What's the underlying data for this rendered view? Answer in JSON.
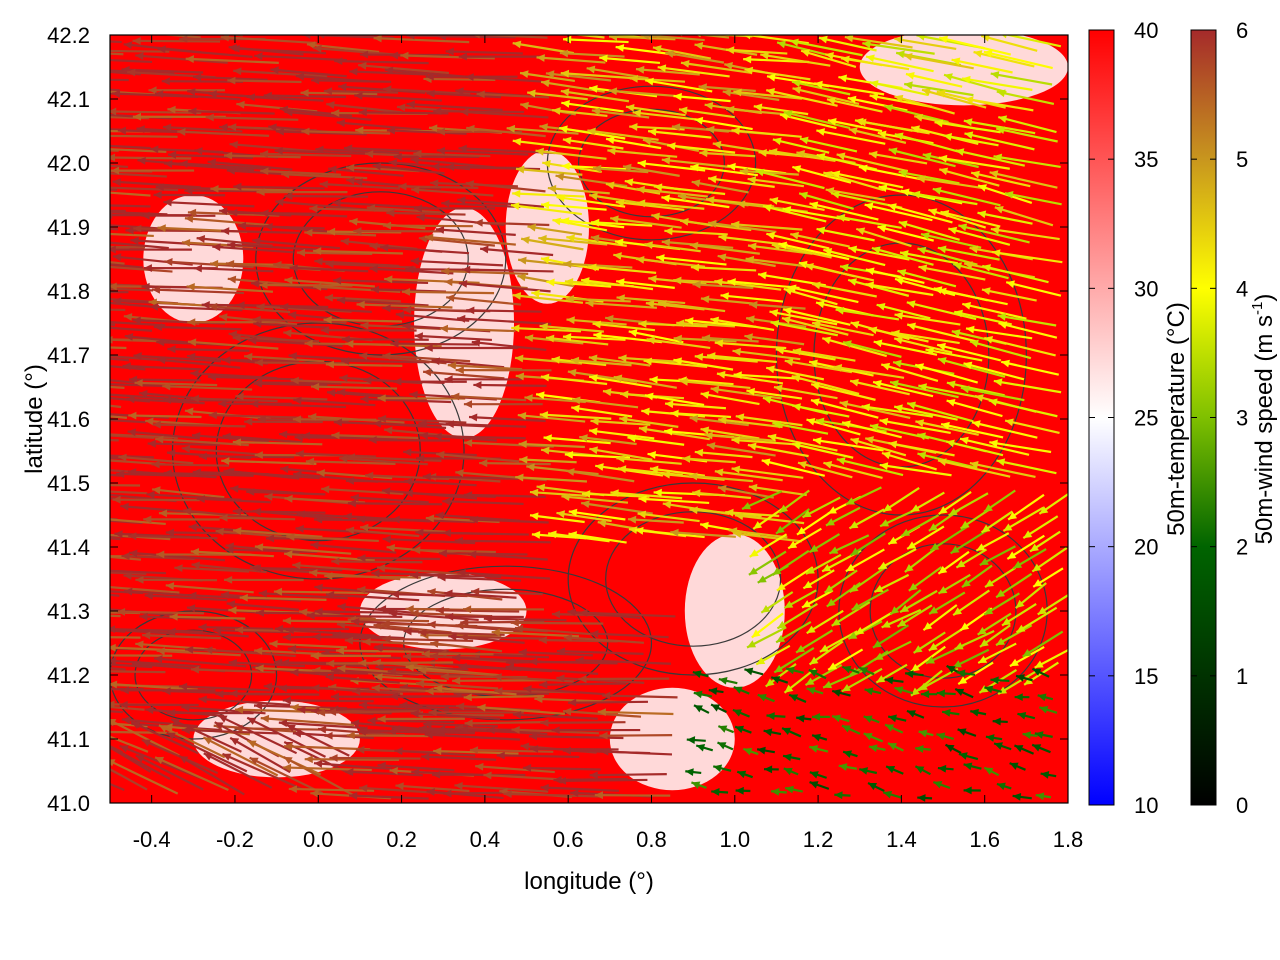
{
  "chart_data": {
    "type": "heatmap",
    "overlay": [
      "wind vectors (arrows)",
      "contour lines"
    ],
    "xlabel": "longitude (°)",
    "ylabel": "latitude (°)",
    "xlim": [
      -0.5,
      1.8
    ],
    "ylim": [
      41.0,
      42.2
    ],
    "x_ticks": [
      "-0.4",
      "-0.2",
      "0.0",
      "0.2",
      "0.4",
      "0.6",
      "0.8",
      "1.0",
      "1.2",
      "1.4",
      "1.6",
      "1.8"
    ],
    "y_ticks": [
      "41.0",
      "41.1",
      "41.2",
      "41.3",
      "41.4",
      "41.5",
      "41.6",
      "41.7",
      "41.8",
      "41.9",
      "42.0",
      "42.1",
      "42.2"
    ],
    "temperature_colorbar": {
      "label": "50m-temperature (°C)",
      "range": [
        10,
        40
      ],
      "ticks": [
        "10",
        "15",
        "20",
        "25",
        "30",
        "35",
        "40"
      ],
      "colors": [
        "#0000ff",
        "#ffffff",
        "#ff0000"
      ]
    },
    "wind_colorbar": {
      "label_main": "50m-wind speed (m s",
      "label_sup": "-1",
      "label_end": ")",
      "range": [
        0,
        6
      ],
      "ticks": [
        "0",
        "1",
        "2",
        "3",
        "4",
        "5",
        "6"
      ],
      "colors": [
        "#000000",
        "#006400",
        "#7fc000",
        "#ffff00",
        "#c8961e",
        "#a52a2a"
      ]
    },
    "temperature_field_note": "mostly >= 40 °C (red) with warm white (~25 °C) patches in the west-central and northeast",
    "white_patches": [
      {
        "lon": 0.35,
        "lat": 41.75,
        "rx": 0.12,
        "ry": 0.18
      },
      {
        "lon": 0.55,
        "lat": 41.9,
        "rx": 0.1,
        "ry": 0.12
      },
      {
        "lon": -0.3,
        "lat": 41.85,
        "rx": 0.12,
        "ry": 0.1
      },
      {
        "lon": 0.3,
        "lat": 41.3,
        "rx": 0.2,
        "ry": 0.06
      },
      {
        "lon": -0.1,
        "lat": 41.1,
        "rx": 0.2,
        "ry": 0.06
      },
      {
        "lon": 1.55,
        "lat": 42.15,
        "rx": 0.25,
        "ry": 0.06
      },
      {
        "lon": 1.0,
        "lat": 41.3,
        "rx": 0.12,
        "ry": 0.12
      },
      {
        "lon": 0.85,
        "lat": 41.1,
        "rx": 0.15,
        "ry": 0.08
      }
    ],
    "wind_field": [
      {
        "lon_range": [
          -0.5,
          0.6
        ],
        "lat_range": [
          41.1,
          42.2
        ],
        "u": -6,
        "v": 0.3,
        "speed": 6
      },
      {
        "lon_range": [
          -0.5,
          0.1
        ],
        "lat_range": [
          41.0,
          41.1
        ],
        "u": -5,
        "v": 2.5,
        "speed": 6
      },
      {
        "lon_range": [
          0.1,
          0.9
        ],
        "lat_range": [
          41.0,
          41.3
        ],
        "u": -6,
        "v": 0.2,
        "speed": 6
      },
      {
        "lon_range": [
          0.6,
          1.2
        ],
        "lat_range": [
          41.4,
          42.2
        ],
        "u": -4.5,
        "v": 0.5,
        "speed": 4.5
      },
      {
        "lon_range": [
          1.2,
          1.8
        ],
        "lat_range": [
          41.5,
          42.2
        ],
        "u": -4.5,
        "v": 1.0,
        "speed": 4
      },
      {
        "lon_range": [
          1.1,
          1.8
        ],
        "lat_range": [
          41.2,
          41.5
        ],
        "u": -2.5,
        "v": -1.5,
        "speed": 3.5
      },
      {
        "lon_range": [
          0.9,
          1.8
        ],
        "lat_range": [
          41.0,
          41.2
        ],
        "u": -1.2,
        "v": 0.3,
        "speed": 2
      }
    ],
    "contours": [
      {
        "lon": 0.0,
        "lat": 41.55,
        "rx": 0.35,
        "ry": 0.2
      },
      {
        "lon": 0.15,
        "lat": 41.85,
        "rx": 0.3,
        "ry": 0.15
      },
      {
        "lon": 0.45,
        "lat": 41.25,
        "rx": 0.35,
        "ry": 0.12
      },
      {
        "lon": 0.9,
        "lat": 41.35,
        "rx": 0.3,
        "ry": 0.15
      },
      {
        "lon": 1.4,
        "lat": 41.7,
        "rx": 0.3,
        "ry": 0.25
      },
      {
        "lon": 0.8,
        "lat": 42.0,
        "rx": 0.25,
        "ry": 0.12
      },
      {
        "lon": 1.5,
        "lat": 41.3,
        "rx": 0.25,
        "ry": 0.15
      },
      {
        "lon": -0.3,
        "lat": 41.2,
        "rx": 0.2,
        "ry": 0.1
      }
    ]
  }
}
